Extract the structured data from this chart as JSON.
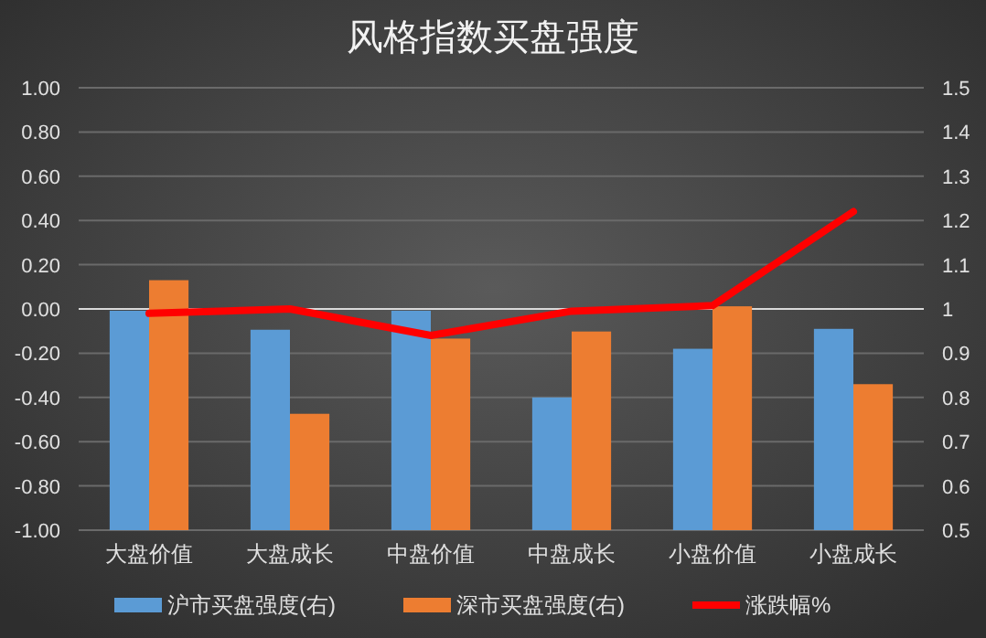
{
  "chart_data": {
    "type": "bar",
    "title": "风格指数买盘强度",
    "categories": [
      "大盘价值",
      "大盘成长",
      "中盘价值",
      "中盘成长",
      "小盘价值",
      "小盘成长"
    ],
    "series": [
      {
        "name": "沪市买盘强度(右)",
        "color": "#5b9bd5",
        "axis": "y2",
        "values": [
          0.996,
          0.953,
          0.996,
          0.8,
          0.91,
          0.955
        ]
      },
      {
        "name": "深市买盘强度(右)",
        "color": "#ed7d31",
        "axis": "y2",
        "values": [
          1.065,
          0.763,
          0.933,
          0.949,
          1.006,
          0.83
        ]
      },
      {
        "name": "涨跌幅%",
        "type": "line",
        "color": "#ff0000",
        "values": [
          -0.02,
          0.0,
          -0.12,
          -0.01,
          0.015,
          0.44
        ]
      }
    ],
    "ylim": [
      -1.0,
      1.0
    ],
    "yticks": [
      {
        "value": -1,
        "label": "-1.00"
      },
      {
        "value": -0.8,
        "label": "-0.80"
      },
      {
        "value": -0.6,
        "label": "-0.60"
      },
      {
        "value": -0.4,
        "label": "-0.40"
      },
      {
        "value": -0.2,
        "label": "-0.20"
      },
      {
        "value": 0,
        "label": "0.00"
      },
      {
        "value": 0.2,
        "label": "0.20"
      },
      {
        "value": 0.4,
        "label": "0.40"
      },
      {
        "value": 0.6,
        "label": "0.60"
      },
      {
        "value": 0.8,
        "label": "0.80"
      },
      {
        "value": 1,
        "label": "1.00"
      }
    ],
    "y2lim": [
      0.5,
      1.5
    ],
    "y2ticks": [
      0.5,
      0.6,
      0.7,
      0.8,
      0.9,
      1,
      1.1,
      1.2,
      1.3,
      1.4,
      1.5
    ],
    "grid": "y",
    "legend": "bottom",
    "marker": "none"
  }
}
